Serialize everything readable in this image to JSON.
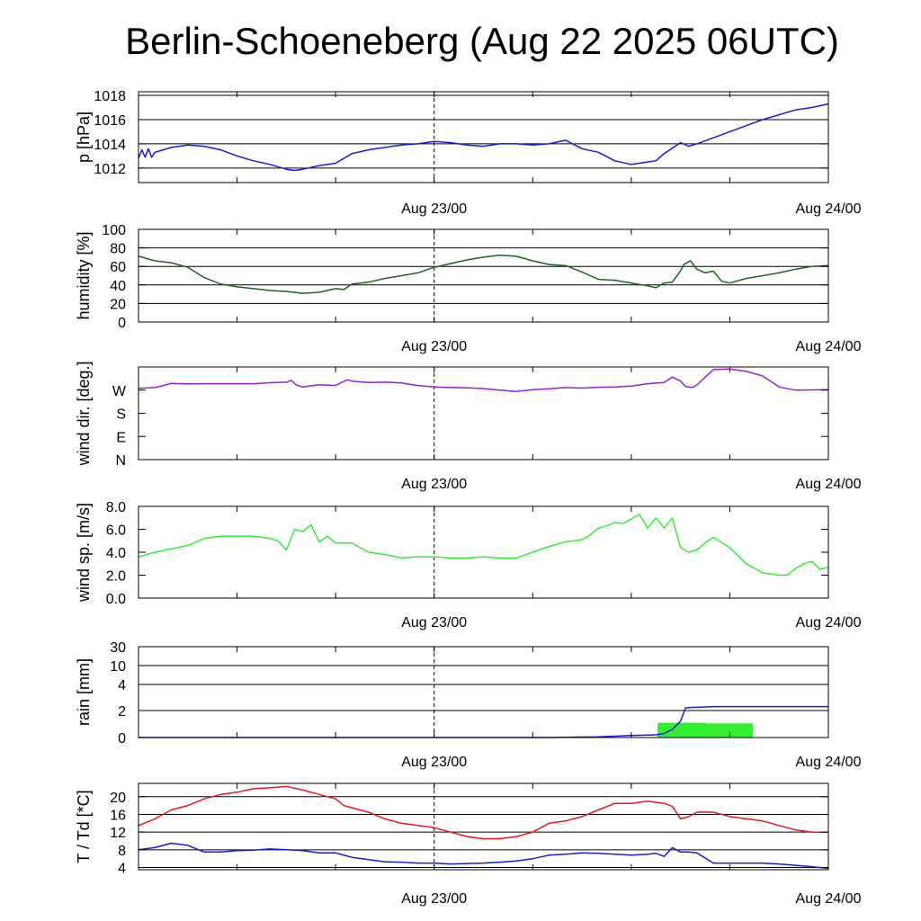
{
  "title": "Berlin-Schoeneberg (Aug 22 2025 06UTC)",
  "colors": {
    "pressure": "#1a1adb",
    "humidity": "#156b15",
    "wind_dir": "#9a1fd6",
    "wind_speed": "#33ee33",
    "rain_total": "#1a1adb",
    "rain_bar": "#33ee33",
    "temperature": "#e61919",
    "dewpoint": "#1a1adb",
    "grid": "#000000"
  },
  "x_labels": [
    {
      "hour": 18,
      "text": "Aug 23/00"
    },
    {
      "hour": 42,
      "text": "Aug 24/00"
    }
  ],
  "chart_data": [
    {
      "type": "line",
      "ylabel": "p [hPa]",
      "ylim": [
        1010.8,
        1018.3
      ],
      "ticks": [
        {
          "v": 1012,
          "t": "1012"
        },
        {
          "v": 1014,
          "t": "1014"
        },
        {
          "v": 1016,
          "t": "1016"
        },
        {
          "v": 1018,
          "t": "1018"
        }
      ],
      "grid": true,
      "x_unit": "hours after Aug 22 06UTC",
      "series": [
        {
          "color_key": "pressure",
          "x": [
            0,
            0.2,
            0.4,
            0.6,
            0.8,
            1,
            1.5,
            2,
            3,
            4,
            5,
            6,
            7,
            8,
            9,
            9.5,
            10,
            11,
            12,
            13,
            14,
            15,
            16,
            17,
            18,
            19,
            20,
            21,
            22,
            23,
            24,
            25,
            26,
            27,
            28,
            29,
            30,
            31,
            31.5,
            32,
            33,
            33.5,
            34,
            35,
            36,
            37,
            38,
            39,
            40,
            41,
            42
          ],
          "y": [
            1012.8,
            1013.5,
            1012.9,
            1013.6,
            1012.9,
            1013.3,
            1013.5,
            1013.7,
            1013.9,
            1013.8,
            1013.5,
            1013,
            1012.6,
            1012.3,
            1011.9,
            1011.8,
            1011.9,
            1012.2,
            1012.4,
            1013.2,
            1013.5,
            1013.7,
            1013.9,
            1014,
            1014.2,
            1014.1,
            1013.9,
            1013.8,
            1014,
            1014,
            1013.9,
            1014,
            1014.3,
            1013.6,
            1013.3,
            1012.6,
            1012.3,
            1012.5,
            1012.6,
            1013.2,
            1014.1,
            1013.8,
            1014,
            1014.5,
            1015,
            1015.5,
            1016,
            1016.4,
            1016.8,
            1017,
            1017.3
          ]
        }
      ]
    },
    {
      "type": "line",
      "ylabel": "humidity [%]",
      "ylim": [
        0,
        100
      ],
      "ticks": [
        {
          "v": 0,
          "t": "0"
        },
        {
          "v": 20,
          "t": "20"
        },
        {
          "v": 40,
          "t": "40"
        },
        {
          "v": 60,
          "t": "60"
        },
        {
          "v": 80,
          "t": "80"
        },
        {
          "v": 100,
          "t": "100"
        }
      ],
      "grid": true,
      "series": [
        {
          "color_key": "humidity",
          "x": [
            0,
            1,
            2,
            3,
            4,
            5,
            6,
            7,
            8,
            9,
            10,
            11,
            11.5,
            12,
            12.5,
            13,
            14,
            15,
            16,
            17,
            18,
            19,
            20,
            21,
            22,
            23,
            24,
            25,
            26,
            27,
            28,
            29,
            30,
            31,
            31.5,
            32,
            32.5,
            33,
            33.2,
            33.6,
            34,
            34.5,
            35,
            35.5,
            36,
            37,
            38,
            39,
            40,
            41,
            42
          ],
          "y": [
            71,
            66,
            64,
            59,
            48,
            41,
            38,
            36,
            34,
            33,
            31,
            32,
            34,
            36,
            35,
            41,
            43,
            47,
            50,
            53,
            59,
            63,
            67,
            70,
            72,
            71,
            66,
            62,
            61,
            54,
            46,
            45,
            42,
            39,
            37,
            42,
            43,
            55,
            62,
            66,
            57,
            53,
            55,
            44,
            42,
            47,
            50,
            53,
            57,
            60,
            61
          ]
        }
      ]
    },
    {
      "type": "line",
      "ylabel": "wind dir. [deg.]",
      "ylim": [
        0,
        360
      ],
      "ticks": [
        {
          "v": 0,
          "t": "N"
        },
        {
          "v": 90,
          "t": "E"
        },
        {
          "v": 180,
          "t": "S"
        },
        {
          "v": 270,
          "t": "W"
        }
      ],
      "grid": false,
      "series": [
        {
          "color_key": "wind_dir",
          "x": [
            0,
            1,
            2,
            3,
            4,
            5,
            6,
            7,
            8,
            9,
            9.3,
            9.6,
            10,
            11,
            12,
            12.7,
            13,
            14,
            15,
            16,
            17,
            18,
            19,
            20,
            21,
            22,
            23,
            24,
            25,
            26,
            27,
            28,
            29,
            30,
            31,
            32,
            32.5,
            33,
            33.3,
            33.7,
            34,
            34.5,
            35,
            36,
            37,
            38,
            39,
            40,
            41,
            42
          ],
          "y": [
            277,
            280,
            296,
            294,
            295,
            295,
            295,
            295,
            299,
            301,
            308,
            290,
            282,
            291,
            288,
            310,
            305,
            300,
            301,
            298,
            288,
            282,
            280,
            279,
            276,
            270,
            265,
            272,
            275,
            280,
            278,
            281,
            282,
            286,
            295,
            300,
            321,
            305,
            285,
            280,
            290,
            320,
            350,
            352,
            343,
            325,
            282,
            270,
            271,
            272
          ]
        }
      ]
    },
    {
      "type": "line",
      "ylabel": "wind sp. [m/s]",
      "ylim": [
        0,
        8
      ],
      "ticks": [
        {
          "v": 0,
          "t": "0.0"
        },
        {
          "v": 2,
          "t": "2.0"
        },
        {
          "v": 4,
          "t": "4.0"
        },
        {
          "v": 6,
          "t": "6.0"
        },
        {
          "v": 8,
          "t": "8.0"
        }
      ],
      "grid": false,
      "series": [
        {
          "color_key": "wind_speed",
          "x": [
            0,
            1,
            2,
            3,
            4,
            5,
            6,
            7,
            8,
            8.5,
            9,
            9.5,
            10,
            10.5,
            11,
            11.5,
            12,
            13,
            14,
            15,
            16,
            17,
            18,
            19,
            20,
            21,
            22,
            23,
            24,
            25,
            26,
            27,
            27.5,
            28,
            28.5,
            29,
            29.5,
            30,
            30.5,
            31,
            31.5,
            32,
            32.5,
            33,
            33.5,
            34,
            34.5,
            35,
            36,
            37,
            38,
            39,
            39.5,
            40,
            40.5,
            41,
            41.5,
            42
          ],
          "y": [
            3.6,
            4.0,
            4.3,
            4.6,
            5.2,
            5.4,
            5.4,
            5.4,
            5.2,
            5.0,
            4.2,
            6.0,
            5.8,
            6.4,
            4.9,
            5.4,
            4.8,
            4.8,
            4.0,
            3.8,
            3.5,
            3.6,
            3.6,
            3.5,
            3.5,
            3.6,
            3.5,
            3.5,
            4.0,
            4.5,
            4.9,
            5.1,
            5.5,
            6.1,
            6.3,
            6.6,
            6.5,
            6.9,
            7.3,
            6.1,
            7.0,
            6.1,
            7.0,
            4.4,
            4.0,
            4.2,
            4.8,
            5.3,
            4.4,
            3.0,
            2.2,
            2.0,
            2.0,
            2.6,
            3.0,
            3.2,
            2.5,
            2.7
          ]
        }
      ]
    },
    {
      "type": "bar+line",
      "ylabel": "rain [mm]",
      "scale": "piecewise",
      "ticks": [
        {
          "v": 0,
          "t": "0"
        },
        {
          "v": 2,
          "t": "2"
        },
        {
          "v": 4,
          "t": "4"
        },
        {
          "v": 10,
          "t": "10"
        },
        {
          "v": 30,
          "t": "30"
        }
      ],
      "grid": true,
      "bars": [
        {
          "x0": 31.6,
          "x1": 34.5,
          "value": 1.1
        },
        {
          "x0": 34.5,
          "x1": 37.4,
          "value": 1.05
        }
      ],
      "series": [
        {
          "color_key": "rain_total",
          "x": [
            0,
            25,
            28,
            30,
            31.5,
            32,
            32.5,
            33,
            33.3,
            33.8,
            34,
            35,
            36,
            37,
            38,
            39,
            40,
            41,
            42
          ],
          "y": [
            0,
            0,
            0.05,
            0.15,
            0.2,
            0.3,
            0.6,
            1.2,
            2.2,
            2.25,
            2.25,
            2.3,
            2.3,
            2.3,
            2.3,
            2.3,
            2.3,
            2.3,
            2.3
          ]
        }
      ]
    },
    {
      "type": "line",
      "ylabel": "T / Td [*C]",
      "ylim": [
        3.5,
        23
      ],
      "ticks": [
        {
          "v": 4,
          "t": "4"
        },
        {
          "v": 8,
          "t": "8"
        },
        {
          "v": 12,
          "t": "12"
        },
        {
          "v": 16,
          "t": "16"
        },
        {
          "v": 20,
          "t": "20"
        }
      ],
      "grid": true,
      "series": [
        {
          "name": "T",
          "color_key": "temperature",
          "x": [
            0,
            1,
            2,
            3,
            4,
            5,
            6,
            7,
            8,
            9,
            10,
            11,
            12,
            12.5,
            13,
            14,
            15,
            16,
            17,
            18,
            19,
            20,
            21,
            22,
            23,
            24,
            25,
            26,
            27,
            28,
            29,
            30,
            31,
            32,
            32.5,
            33,
            33.5,
            34,
            35,
            36,
            37,
            38,
            39,
            40,
            41,
            42
          ],
          "y": [
            13.5,
            15,
            17,
            18,
            19.5,
            20.5,
            21,
            21.8,
            22,
            22.3,
            21.5,
            20.5,
            19.5,
            18,
            17.5,
            16.5,
            15,
            14,
            13.5,
            13,
            12,
            11,
            10.5,
            10.5,
            11,
            12,
            14,
            14.5,
            15.5,
            17,
            18.5,
            18.5,
            19,
            18.5,
            17.8,
            15,
            15.5,
            16.5,
            16.5,
            15.5,
            15,
            14.5,
            13.5,
            12.5,
            12,
            12
          ]
        },
        {
          "name": "Td",
          "color_key": "dewpoint",
          "x": [
            0,
            1,
            2,
            3,
            4,
            5,
            6,
            7,
            8,
            9,
            10,
            11,
            12,
            13,
            14,
            15,
            16,
            17,
            18,
            19,
            20,
            21,
            22,
            23,
            24,
            25,
            26,
            27,
            28,
            29,
            30,
            31,
            31.5,
            32,
            32.5,
            33,
            33.5,
            34,
            35,
            36,
            37,
            38,
            39,
            40,
            41,
            42
          ],
          "y": [
            8,
            8.5,
            9.5,
            9,
            7.5,
            7.5,
            7.8,
            7.9,
            8.2,
            8,
            7.8,
            7.3,
            7.3,
            6.3,
            5.8,
            5.3,
            5.2,
            5,
            5,
            4.8,
            4.9,
            5,
            5.2,
            5.5,
            6,
            6.8,
            7,
            7.3,
            7.2,
            7,
            6.8,
            7,
            7.2,
            6.5,
            8.5,
            7.5,
            7.5,
            7.3,
            5,
            5,
            5,
            5,
            4.8,
            4.5,
            4.2,
            3.8
          ]
        }
      ]
    }
  ]
}
